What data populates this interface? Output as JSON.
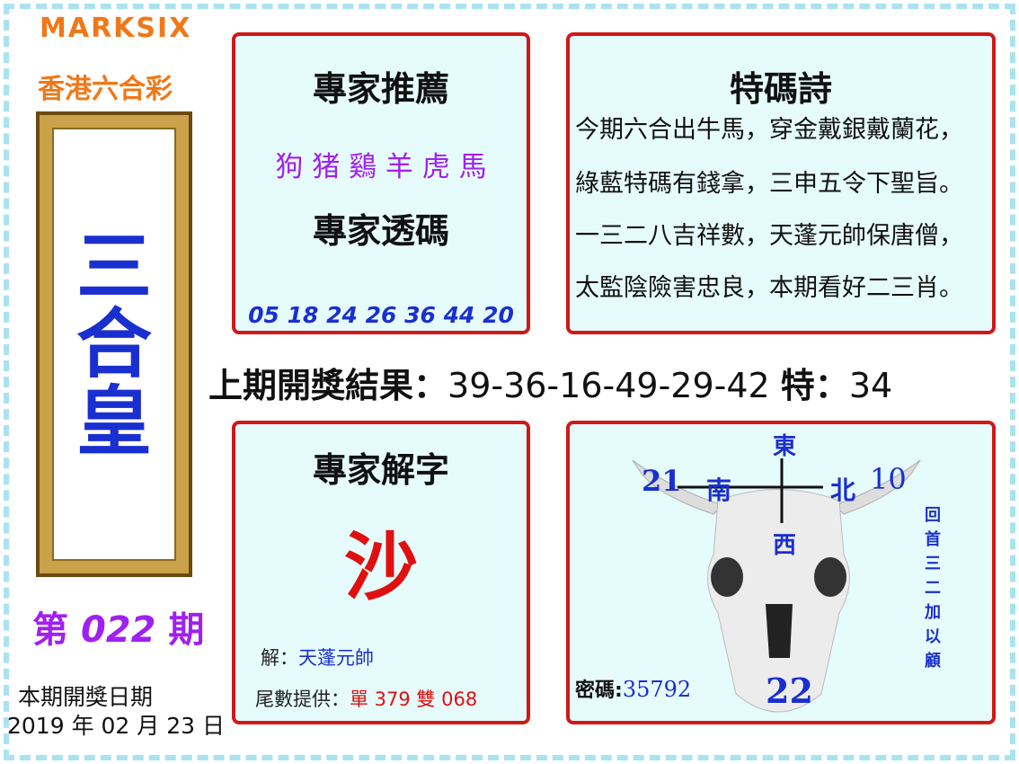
{
  "brand": {
    "en": "MARKSIX",
    "zh": "香港六合彩"
  },
  "banner": {
    "chars": [
      "三",
      "合",
      "皇"
    ]
  },
  "issue": {
    "prefix": "第",
    "number": "022",
    "suffix": "期"
  },
  "draw_date": {
    "label": "本期開獎日期",
    "value": "2019 年 02 月 23 日"
  },
  "expert_recommend": {
    "title": "專家推薦",
    "zodiacs": "狗 猪 鷄 羊 虎 馬",
    "sub_title": "專家透碼",
    "numbers": "05 18 24 26 36 44 20"
  },
  "poem": {
    "title": "特碼詩",
    "lines": [
      "今期六合出牛馬，穿金戴銀戴蘭花，",
      "綠藍特碼有錢拿，三申五令下聖旨。",
      "一三二八吉祥數，天蓬元帥保唐僧，",
      "太監陰險害忠良，本期看好二三肖。"
    ]
  },
  "last_result": {
    "label": "上期開獎結果：",
    "numbers": "39-36-16-49-29-42",
    "special_label": "特：",
    "special": "34"
  },
  "riddle": {
    "title": "專家解字",
    "char": "沙",
    "answer_label": "解：",
    "answer": "天蓬元帥",
    "tail_label": "尾數提供：",
    "tail_value": "單 379 雙 068"
  },
  "skull": {
    "east": "東",
    "south": "南",
    "west": "西",
    "north": "北",
    "left_num": "21",
    "right_num": "10",
    "bottom_num": "22",
    "secret_label": "密碼:",
    "secret": "35792",
    "side_text": [
      "回",
      "首",
      "三",
      "二",
      "加",
      "以",
      "顧"
    ]
  },
  "colors": {
    "panel_border": "#d01818",
    "panel_bg": "#e6fbfb",
    "blue": "#1a2fd0",
    "purple": "#a020f0",
    "orange": "#f07818"
  }
}
